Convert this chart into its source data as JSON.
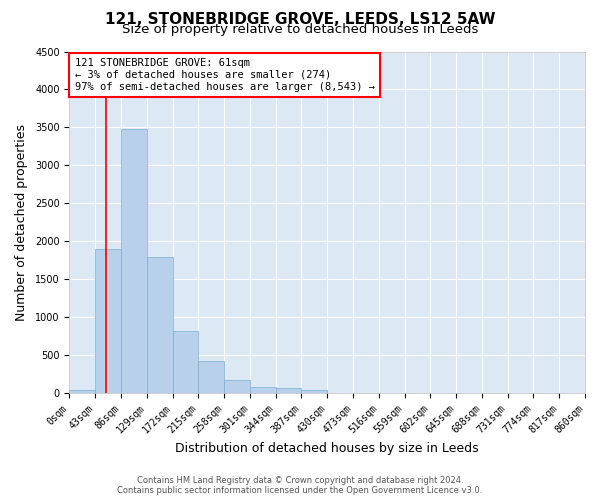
{
  "title": "121, STONEBRIDGE GROVE, LEEDS, LS12 5AW",
  "subtitle": "Size of property relative to detached houses in Leeds",
  "xlabel": "Distribution of detached houses by size in Leeds",
  "ylabel": "Number of detached properties",
  "footer_line1": "Contains HM Land Registry data © Crown copyright and database right 2024.",
  "footer_line2": "Contains public sector information licensed under the Open Government Licence v3.0.",
  "bin_edges": [
    0,
    43,
    86,
    129,
    172,
    215,
    258,
    301,
    344,
    387,
    430,
    473,
    516,
    559,
    602,
    645,
    688,
    731,
    774,
    817,
    860
  ],
  "bar_heights": [
    50,
    1900,
    3480,
    1800,
    820,
    430,
    170,
    90,
    70,
    40,
    10,
    5,
    0,
    0,
    0,
    0,
    0,
    0,
    0,
    0
  ],
  "bar_color": "#b8d0ea",
  "bar_edge_color": "#7aafd4",
  "property_size": 61,
  "annotation_title": "121 STONEBRIDGE GROVE: 61sqm",
  "annotation_line2": "← 3% of detached houses are smaller (274)",
  "annotation_line3": "97% of semi-detached houses are larger (8,543) →",
  "annotation_box_color": "white",
  "annotation_box_edge_color": "red",
  "vline_color": "red",
  "ylim": [
    0,
    4500
  ],
  "yticks": [
    0,
    500,
    1000,
    1500,
    2000,
    2500,
    3000,
    3500,
    4000,
    4500
  ],
  "plot_bg_color": "#dde8f5",
  "title_fontsize": 11,
  "subtitle_fontsize": 9.5,
  "tick_label_fontsize": 7,
  "axis_label_fontsize": 9,
  "annotation_fontsize": 7.5,
  "footer_fontsize": 6
}
